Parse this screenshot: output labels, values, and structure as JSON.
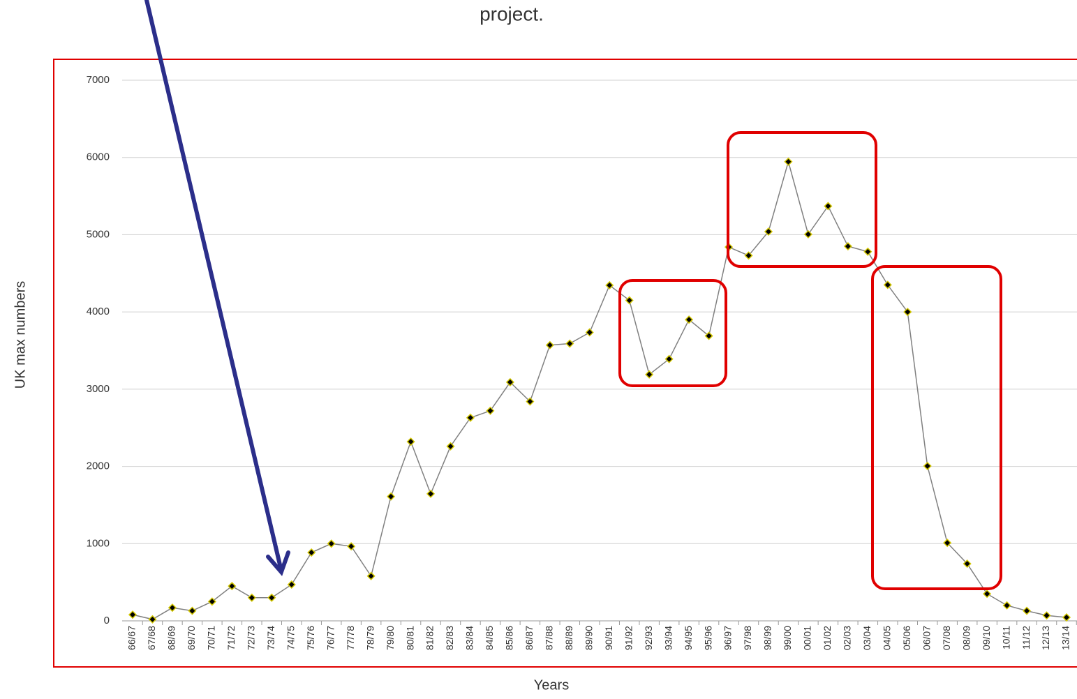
{
  "chart_data": {
    "type": "line",
    "annotation": "project.",
    "xlabel": "Years",
    "ylabel": "UK max numbers",
    "categories": [
      "66/67",
      "67/68",
      "68/69",
      "69/70",
      "70/71",
      "71/72",
      "72/73",
      "73/74",
      "74/75",
      "75/76",
      "76/77",
      "77/78",
      "78/79",
      "79/80",
      "80/81",
      "81/82",
      "82/83",
      "83/84",
      "84/85",
      "85/86",
      "86/87",
      "87/88",
      "88/89",
      "89/90",
      "90/91",
      "91/92",
      "92/93",
      "93/94",
      "94/95",
      "95/96",
      "96/97",
      "97/98",
      "98/99",
      "99/00",
      "00/01",
      "01/02",
      "02/03",
      "03/04",
      "04/05",
      "05/06",
      "06/07",
      "07/08",
      "08/09",
      "09/10",
      "10/11",
      "11/12",
      "12/13",
      "13/14"
    ],
    "values": [
      80,
      20,
      170,
      130,
      250,
      450,
      300,
      300,
      470,
      885,
      1000,
      965,
      580,
      1610,
      2320,
      1645,
      2260,
      2630,
      2720,
      3090,
      2840,
      3570,
      3590,
      3735,
      4345,
      4150,
      3190,
      3390,
      3900,
      3690,
      4840,
      4730,
      5040,
      5945,
      5005,
      5370,
      4850,
      4780,
      4350,
      4000,
      2005,
      1010,
      740,
      350,
      200,
      130,
      70,
      45
    ],
    "color": "#808080",
    "marker_color": "#000000",
    "marker_edge": "#d4c800",
    "ylim": [
      0,
      7000
    ],
    "yticks": [
      0,
      1000,
      2000,
      3000,
      4000,
      5000,
      6000,
      7000
    ],
    "grid": true
  }
}
